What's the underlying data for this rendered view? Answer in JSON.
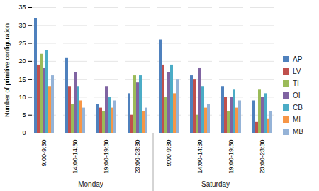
{
  "chart_data": {
    "type": "bar",
    "y_label": "Number of primitive configuration",
    "groups": [
      {
        "label": "Monday",
        "categories": [
          "9:00-9:30",
          "14:00-14:30",
          "19:00-19:30",
          "23:00-23:30"
        ]
      },
      {
        "label": "Saturday",
        "categories": [
          "9:00-9:30",
          "14:00-14:30",
          "19:00-19:30",
          "23:00-23:30"
        ]
      }
    ],
    "series": [
      {
        "name": "AP",
        "color": "#4F81BD",
        "values": [
          32,
          21,
          8,
          11,
          26,
          16,
          13,
          9
        ]
      },
      {
        "name": "LV",
        "color": "#C0504D",
        "values": [
          19,
          13,
          7,
          5,
          19,
          15,
          10,
          3
        ]
      },
      {
        "name": "TI",
        "color": "#9BBB59",
        "values": [
          22,
          8,
          6,
          16,
          10,
          5,
          6,
          12
        ]
      },
      {
        "name": "OI",
        "color": "#8064A2",
        "values": [
          18,
          17,
          13,
          14,
          17,
          18,
          10,
          10
        ]
      },
      {
        "name": "CB",
        "color": "#4BACC6",
        "values": [
          23,
          13,
          10,
          16,
          19,
          13,
          12,
          11
        ]
      },
      {
        "name": "MI",
        "color": "#F79646",
        "values": [
          13,
          9,
          7,
          6,
          11,
          7,
          7,
          4
        ]
      },
      {
        "name": "MB",
        "color": "#95B3D7",
        "values": [
          16,
          7,
          9,
          7,
          15,
          8,
          9,
          6
        ]
      }
    ],
    "ylim": [
      0,
      35
    ],
    "yticks": [
      0,
      5,
      10,
      15,
      20,
      25,
      30,
      35
    ],
    "grid": true,
    "legend": "right"
  }
}
